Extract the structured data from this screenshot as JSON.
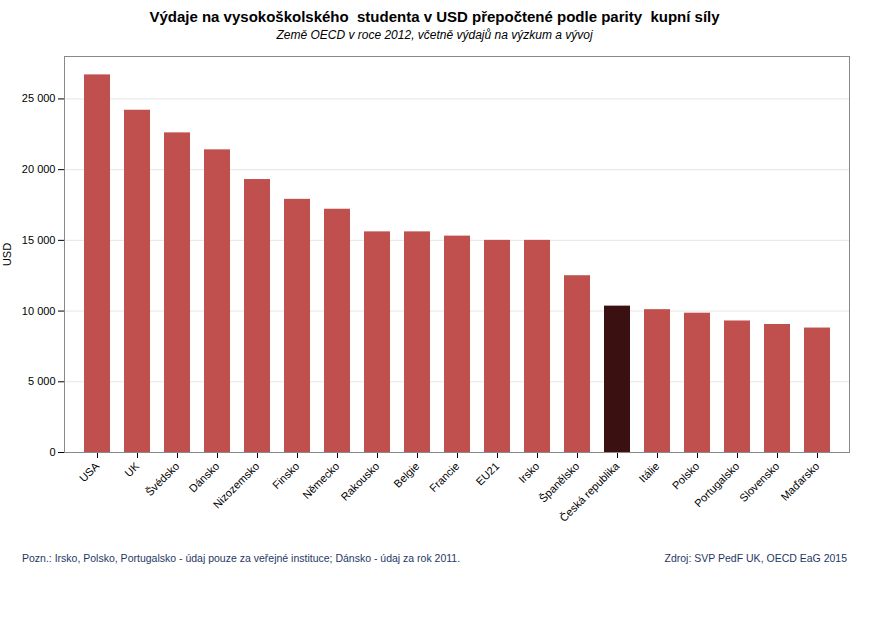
{
  "chart_data": {
    "type": "bar",
    "title": "Výdaje na vysokoškolského  studenta v USD přepočtené podle parity  kupní síly",
    "subtitle": "Země OECD v roce 2012, včetně výdajů na výzkum a vývoj",
    "categories": [
      "USA",
      "UK",
      "Švédsko",
      "Dánsko",
      "Nizozemsko",
      "Finsko",
      "Německo",
      "Rakousko",
      "Belgie",
      "Francie",
      "EU21",
      "Irsko",
      "Španělsko",
      "Česká republika",
      "Itálie",
      "Polsko",
      "Portugalsko",
      "Slovensko",
      "Maďarsko"
    ],
    "values": [
      26700,
      24200,
      22600,
      21400,
      19300,
      17900,
      17200,
      15600,
      15600,
      15300,
      15000,
      15000,
      12500,
      10350,
      10100,
      9850,
      9300,
      9050,
      8800
    ],
    "colors": [
      "#c0504d",
      "#c0504d",
      "#c0504d",
      "#c0504d",
      "#c0504d",
      "#c0504d",
      "#c0504d",
      "#c0504d",
      "#c0504d",
      "#c0504d",
      "#c0504d",
      "#c0504d",
      "#c0504d",
      "#3b1010",
      "#c0504d",
      "#c0504d",
      "#c0504d",
      "#c0504d",
      "#c0504d"
    ],
    "ylabel": "USD",
    "ylim": [
      0,
      28000
    ],
    "yticks": [
      0,
      {
        "value": 5000,
        "label": "5 000"
      },
      {
        "value": 10000,
        "label": "10 000"
      },
      {
        "value": 15000,
        "label": "15 000"
      },
      {
        "value": 20000,
        "label": "20 000"
      },
      {
        "value": 25000,
        "label": "25 000"
      }
    ],
    "grid": true,
    "footer_left": "Pozn.: Irsko, Polsko, Portugalsko - údaj pouze za veřejné instituce; Dánsko - údaj za rok 2011.",
    "footer_right": "Zdroj: SVP PedF UK, OECD EaG 2015"
  }
}
